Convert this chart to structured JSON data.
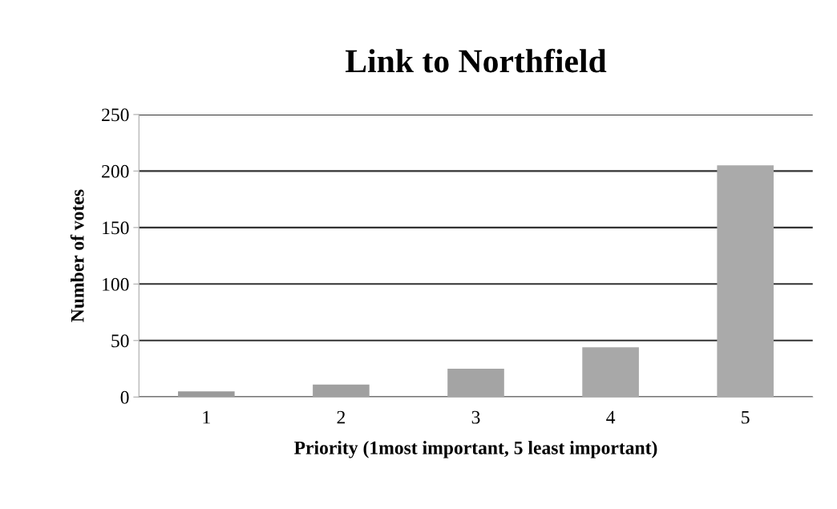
{
  "chart_data": {
    "type": "bar",
    "title": "Link to Northfield",
    "xlabel": "Priority (1most important, 5 least important)",
    "ylabel": "Number of votes",
    "categories": [
      "1",
      "2",
      "3",
      "4",
      "5"
    ],
    "values": [
      5,
      11,
      25,
      44,
      205
    ],
    "colors": [
      "#9a9a9a",
      "#a0a0a0",
      "#a4a4a4",
      "#a8a8a8",
      "#aaaaaa"
    ],
    "ylim": [
      0,
      250
    ],
    "yticks": [
      0,
      50,
      100,
      150,
      200,
      250
    ],
    "grid": "y"
  }
}
